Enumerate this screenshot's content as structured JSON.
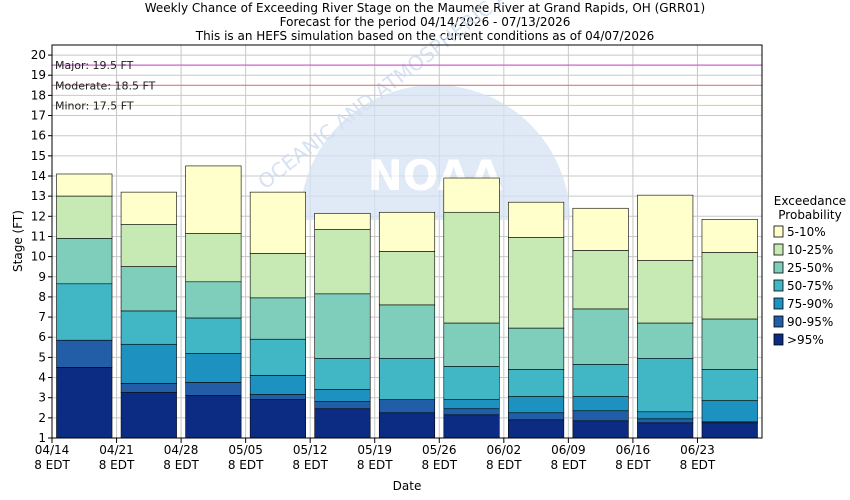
{
  "chart_data": {
    "type": "bar",
    "title": [
      "Weekly Chance of Exceeding River Stage on the Maumee River at Grand Rapids, OH (GRR01)",
      "Forecast for the period 04/14/2026 - 07/13/2026",
      "This is an HEFS simulation based on the current conditions as of 04/07/2026"
    ],
    "xlabel": "Date",
    "ylabel": "Stage (FT)",
    "ylim": [
      1,
      20.5
    ],
    "yticks": [
      1,
      2,
      3,
      4,
      5,
      6,
      7,
      8,
      9,
      10,
      11,
      12,
      13,
      14,
      15,
      16,
      17,
      18,
      19,
      20
    ],
    "xticks": [
      {
        "date": "04/14",
        "time": "8 EDT"
      },
      {
        "date": "04/21",
        "time": "8 EDT"
      },
      {
        "date": "04/28",
        "time": "8 EDT"
      },
      {
        "date": "05/05",
        "time": "8 EDT"
      },
      {
        "date": "05/12",
        "time": "8 EDT"
      },
      {
        "date": "05/19",
        "time": "8 EDT"
      },
      {
        "date": "05/26",
        "time": "8 EDT"
      },
      {
        "date": "06/02",
        "time": "8 EDT"
      },
      {
        "date": "06/09",
        "time": "8 EDT"
      },
      {
        "date": "06/16",
        "time": "8 EDT"
      },
      {
        "date": "06/23",
        "time": "8 EDT"
      }
    ],
    "grid": true,
    "flood_levels": [
      {
        "label": "Major: 19.5 FT",
        "value": 19.5,
        "color": "#cc66cc"
      },
      {
        "label": "Moderate: 18.5 FT",
        "value": 18.5,
        "color": "#e07a7a"
      },
      {
        "label": "Minor: 17.5 FT",
        "value": 17.5,
        "color": "#e8d27a"
      }
    ],
    "legend_title": [
      "Exceedance",
      "Probability"
    ],
    "legend_placement": "right",
    "bands": [
      {
        "name": "5-10%",
        "color": "#ffffcc"
      },
      {
        "name": "10-25%",
        "color": "#c7e9b4"
      },
      {
        "name": "25-50%",
        "color": "#7fcdbb"
      },
      {
        "name": "50-75%",
        "color": "#41b6c4"
      },
      {
        "name": "75-90%",
        "color": "#1d91c0"
      },
      {
        "name": "90-95%",
        "color": "#225ea8"
      },
      {
        "name": ">95%",
        "color": "#0c2c84"
      }
    ],
    "weeks": [
      {
        "start": "04/14",
        "levels": [
          14.1,
          13.0,
          10.9,
          8.65,
          5.85,
          5.85,
          4.5
        ]
      },
      {
        "start": "04/21",
        "levels": [
          13.2,
          11.6,
          9.5,
          7.3,
          5.65,
          3.7,
          3.25
        ]
      },
      {
        "start": "04/28",
        "levels": [
          14.5,
          11.15,
          8.75,
          6.95,
          5.2,
          3.75,
          3.1
        ]
      },
      {
        "start": "05/05",
        "levels": [
          13.2,
          10.15,
          7.95,
          5.9,
          4.1,
          3.15,
          2.9
        ]
      },
      {
        "start": "05/12",
        "levels": [
          12.15,
          11.35,
          8.15,
          4.95,
          3.4,
          2.8,
          2.45
        ]
      },
      {
        "start": "05/19",
        "levels": [
          12.2,
          10.25,
          7.6,
          4.95,
          2.9,
          2.9,
          2.25
        ]
      },
      {
        "start": "05/26",
        "levels": [
          13.9,
          12.2,
          6.7,
          4.55,
          2.9,
          2.45,
          2.15
        ]
      },
      {
        "start": "06/02",
        "levels": [
          12.7,
          10.95,
          6.45,
          4.4,
          3.05,
          2.25,
          1.9
        ]
      },
      {
        "start": "06/09",
        "levels": [
          12.4,
          10.3,
          7.4,
          4.65,
          3.05,
          2.35,
          1.85
        ]
      },
      {
        "start": "06/16",
        "levels": [
          13.05,
          9.8,
          6.7,
          4.95,
          2.3,
          1.95,
          1.75
        ]
      },
      {
        "start": "06/23",
        "levels": [
          11.85,
          10.2,
          6.9,
          4.4,
          2.85,
          1.8,
          1.75
        ]
      }
    ]
  },
  "watermark": {
    "text": "OCEANIC AND ATMOSPHERIC ADMINISTRATION",
    "logo": "NOAA"
  },
  "icons": {
    "noaa_logo": "noaa-logo-watermark"
  }
}
